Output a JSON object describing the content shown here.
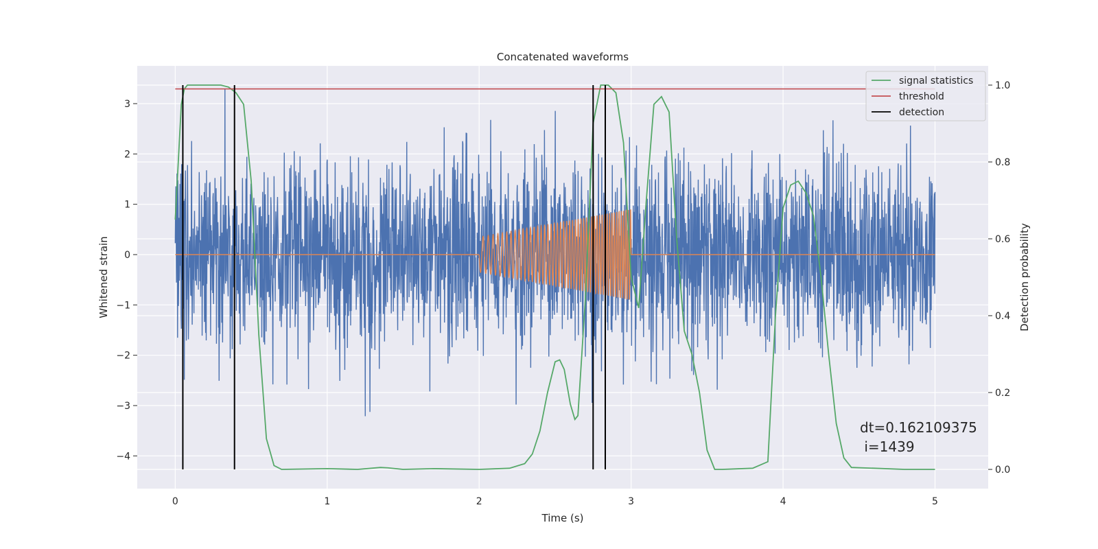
{
  "chart_data": {
    "type": "line",
    "title": "Concatenated waveforms",
    "xlabel": "Time (s)",
    "ylabel_left": "Whitened strain",
    "ylabel_right": "Detection probability",
    "xlim": [
      -0.25,
      5.35
    ],
    "ylim_left": [
      -4.65,
      3.75
    ],
    "ylim_right": [
      -0.05,
      1.05
    ],
    "xticks": [
      0,
      1,
      2,
      3,
      4,
      5
    ],
    "yticks_left": [
      3,
      2,
      1,
      0,
      -1,
      -2,
      -3,
      -4
    ],
    "yticks_right": [
      1.0,
      0.8,
      0.6,
      0.4,
      0.2,
      0.0
    ],
    "grid": true,
    "legend_position": "top-right",
    "series": [
      {
        "name": "strain",
        "axis": "left",
        "color": "#4c72b0",
        "description_range": [
          -3.3,
          3.3
        ],
        "x_range": [
          0,
          5
        ]
      },
      {
        "name": "injected waveform",
        "axis": "left",
        "color": "#dd8452",
        "x_start": 2.0,
        "x_end": 3.0,
        "amplitude_start": 0.35,
        "amplitude_end": 0.9
      },
      {
        "name": "signal statistics",
        "axis": "right",
        "color": "#55a868",
        "x": [
          0.0,
          0.02,
          0.04,
          0.06,
          0.08,
          0.1,
          0.2,
          0.3,
          0.35,
          0.4,
          0.45,
          0.5,
          0.55,
          0.6,
          0.65,
          0.7,
          1.0,
          1.2,
          1.35,
          1.4,
          1.5,
          1.7,
          2.0,
          2.2,
          2.3,
          2.35,
          2.4,
          2.45,
          2.5,
          2.53,
          2.56,
          2.6,
          2.63,
          2.65,
          2.7,
          2.75,
          2.8,
          2.85,
          2.9,
          2.95,
          3.0,
          3.05,
          3.1,
          3.15,
          3.2,
          3.25,
          3.3,
          3.35,
          3.4,
          3.45,
          3.5,
          3.55,
          3.6,
          3.8,
          3.9,
          3.95,
          4.0,
          4.05,
          4.1,
          4.15,
          4.2,
          4.25,
          4.3,
          4.35,
          4.4,
          4.45,
          4.6,
          4.8,
          5.0
        ],
        "y": [
          0.65,
          0.8,
          0.95,
          0.99,
          1.0,
          1.0,
          1.0,
          1.0,
          0.995,
          0.98,
          0.95,
          0.75,
          0.35,
          0.08,
          0.01,
          0.0,
          0.002,
          0.0,
          0.005,
          0.004,
          0.0,
          0.002,
          0.0,
          0.003,
          0.015,
          0.04,
          0.1,
          0.2,
          0.28,
          0.285,
          0.26,
          0.17,
          0.13,
          0.14,
          0.45,
          0.9,
          1.0,
          1.0,
          0.98,
          0.85,
          0.5,
          0.42,
          0.7,
          0.95,
          0.97,
          0.93,
          0.6,
          0.36,
          0.3,
          0.2,
          0.05,
          0.0,
          0.0,
          0.003,
          0.02,
          0.4,
          0.68,
          0.74,
          0.75,
          0.72,
          0.66,
          0.5,
          0.3,
          0.12,
          0.03,
          0.005,
          0.003,
          0.0,
          0.0
        ]
      },
      {
        "name": "threshold",
        "axis": "right",
        "color": "#c44e52",
        "x": [
          0,
          5
        ],
        "y": [
          0.99,
          0.99
        ]
      },
      {
        "name": "detection",
        "axis": "right",
        "color": "#000000",
        "type": "vlines",
        "x": [
          0.05,
          0.39,
          2.75,
          2.83
        ],
        "ymin": 0.0,
        "ymax": 1.0
      }
    ],
    "legend": [
      "signal statistics",
      "threshold",
      "detection"
    ],
    "annotation": {
      "line1": "dt=0.162109375",
      "line2": " i=1439"
    }
  }
}
